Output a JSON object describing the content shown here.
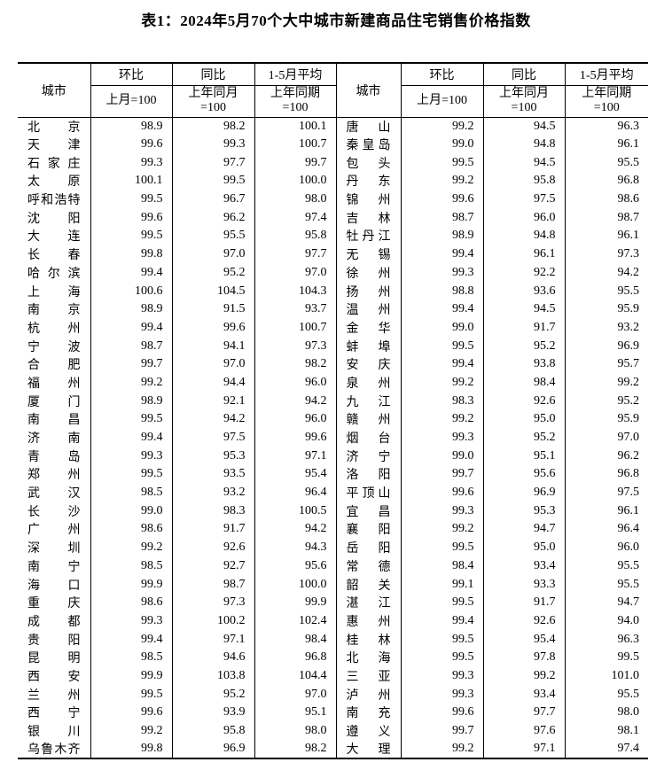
{
  "title": "表1：2024年5月70个大中城市新建商品住宅销售价格指数",
  "table": {
    "city_header": "城市",
    "col_groups": [
      {
        "label": "环比",
        "sub": [
          "上月=100"
        ]
      },
      {
        "label": "同比",
        "sub": [
          "上年同月",
          "=100"
        ]
      },
      {
        "label": "1-5月平均",
        "sub": [
          "上年同期",
          "=100"
        ]
      }
    ],
    "left_rows": [
      {
        "city": "北京",
        "mom": "98.9",
        "yoy": "98.2",
        "avg": "100.1"
      },
      {
        "city": "天津",
        "mom": "99.6",
        "yoy": "99.3",
        "avg": "100.7"
      },
      {
        "city": "石家庄",
        "mom": "99.3",
        "yoy": "97.7",
        "avg": "99.7"
      },
      {
        "city": "太原",
        "mom": "100.1",
        "yoy": "99.5",
        "avg": "100.0"
      },
      {
        "city": "呼和浩特",
        "mom": "99.5",
        "yoy": "96.7",
        "avg": "98.0"
      },
      {
        "city": "沈阳",
        "mom": "99.6",
        "yoy": "96.2",
        "avg": "97.4"
      },
      {
        "city": "大连",
        "mom": "99.5",
        "yoy": "95.5",
        "avg": "95.8"
      },
      {
        "city": "长春",
        "mom": "99.8",
        "yoy": "97.0",
        "avg": "97.7"
      },
      {
        "city": "哈尔滨",
        "mom": "99.4",
        "yoy": "95.2",
        "avg": "97.0"
      },
      {
        "city": "上海",
        "mom": "100.6",
        "yoy": "104.5",
        "avg": "104.3"
      },
      {
        "city": "南京",
        "mom": "98.9",
        "yoy": "91.5",
        "avg": "93.7"
      },
      {
        "city": "杭州",
        "mom": "99.4",
        "yoy": "99.6",
        "avg": "100.7"
      },
      {
        "city": "宁波",
        "mom": "98.7",
        "yoy": "94.1",
        "avg": "97.3"
      },
      {
        "city": "合肥",
        "mom": "99.7",
        "yoy": "97.0",
        "avg": "98.2"
      },
      {
        "city": "福州",
        "mom": "99.2",
        "yoy": "94.4",
        "avg": "96.0"
      },
      {
        "city": "厦门",
        "mom": "98.9",
        "yoy": "92.1",
        "avg": "94.2"
      },
      {
        "city": "南昌",
        "mom": "99.5",
        "yoy": "94.2",
        "avg": "96.0"
      },
      {
        "city": "济南",
        "mom": "99.4",
        "yoy": "97.5",
        "avg": "99.6"
      },
      {
        "city": "青岛",
        "mom": "99.3",
        "yoy": "95.3",
        "avg": "97.1"
      },
      {
        "city": "郑州",
        "mom": "99.5",
        "yoy": "93.5",
        "avg": "95.4"
      },
      {
        "city": "武汉",
        "mom": "98.5",
        "yoy": "93.2",
        "avg": "96.4"
      },
      {
        "city": "长沙",
        "mom": "99.0",
        "yoy": "98.3",
        "avg": "100.5"
      },
      {
        "city": "广州",
        "mom": "98.6",
        "yoy": "91.7",
        "avg": "94.2"
      },
      {
        "city": "深圳",
        "mom": "99.2",
        "yoy": "92.6",
        "avg": "94.3"
      },
      {
        "city": "南宁",
        "mom": "98.5",
        "yoy": "92.7",
        "avg": "95.6"
      },
      {
        "city": "海口",
        "mom": "99.9",
        "yoy": "98.7",
        "avg": "100.0"
      },
      {
        "city": "重庆",
        "mom": "98.6",
        "yoy": "97.3",
        "avg": "99.9"
      },
      {
        "city": "成都",
        "mom": "99.3",
        "yoy": "100.2",
        "avg": "102.4"
      },
      {
        "city": "贵阳",
        "mom": "99.4",
        "yoy": "97.1",
        "avg": "98.4"
      },
      {
        "city": "昆明",
        "mom": "98.5",
        "yoy": "94.6",
        "avg": "96.8"
      },
      {
        "city": "西安",
        "mom": "99.9",
        "yoy": "103.8",
        "avg": "104.4"
      },
      {
        "city": "兰州",
        "mom": "99.5",
        "yoy": "95.2",
        "avg": "97.0"
      },
      {
        "city": "西宁",
        "mom": "99.6",
        "yoy": "93.9",
        "avg": "95.1"
      },
      {
        "city": "银川",
        "mom": "99.2",
        "yoy": "95.8",
        "avg": "98.0"
      },
      {
        "city": "乌鲁木齐",
        "mom": "99.8",
        "yoy": "96.9",
        "avg": "98.2"
      }
    ],
    "right_rows": [
      {
        "city": "唐山",
        "mom": "99.2",
        "yoy": "94.5",
        "avg": "96.3"
      },
      {
        "city": "秦皇岛",
        "mom": "99.0",
        "yoy": "94.8",
        "avg": "96.1"
      },
      {
        "city": "包头",
        "mom": "99.5",
        "yoy": "94.5",
        "avg": "95.5"
      },
      {
        "city": "丹东",
        "mom": "99.2",
        "yoy": "95.8",
        "avg": "96.8"
      },
      {
        "city": "锦州",
        "mom": "99.6",
        "yoy": "97.5",
        "avg": "98.6"
      },
      {
        "city": "吉林",
        "mom": "98.7",
        "yoy": "96.0",
        "avg": "98.7"
      },
      {
        "city": "牡丹江",
        "mom": "98.9",
        "yoy": "94.8",
        "avg": "96.1"
      },
      {
        "city": "无锡",
        "mom": "99.4",
        "yoy": "96.1",
        "avg": "97.3"
      },
      {
        "city": "徐州",
        "mom": "99.3",
        "yoy": "92.2",
        "avg": "94.2"
      },
      {
        "city": "扬州",
        "mom": "98.8",
        "yoy": "93.6",
        "avg": "95.5"
      },
      {
        "city": "温州",
        "mom": "99.4",
        "yoy": "94.5",
        "avg": "95.9"
      },
      {
        "city": "金华",
        "mom": "99.0",
        "yoy": "91.7",
        "avg": "93.2"
      },
      {
        "city": "蚌埠",
        "mom": "99.5",
        "yoy": "95.2",
        "avg": "96.9"
      },
      {
        "city": "安庆",
        "mom": "99.4",
        "yoy": "93.8",
        "avg": "95.7"
      },
      {
        "city": "泉州",
        "mom": "99.2",
        "yoy": "98.4",
        "avg": "99.2"
      },
      {
        "city": "九江",
        "mom": "98.3",
        "yoy": "92.6",
        "avg": "95.2"
      },
      {
        "city": "赣州",
        "mom": "99.2",
        "yoy": "95.0",
        "avg": "95.9"
      },
      {
        "city": "烟台",
        "mom": "99.3",
        "yoy": "95.2",
        "avg": "97.0"
      },
      {
        "city": "济宁",
        "mom": "99.0",
        "yoy": "95.1",
        "avg": "96.2"
      },
      {
        "city": "洛阳",
        "mom": "99.7",
        "yoy": "95.6",
        "avg": "96.8"
      },
      {
        "city": "平顶山",
        "mom": "99.6",
        "yoy": "96.9",
        "avg": "97.5"
      },
      {
        "city": "宜昌",
        "mom": "99.3",
        "yoy": "95.3",
        "avg": "96.1"
      },
      {
        "city": "襄阳",
        "mom": "99.2",
        "yoy": "94.7",
        "avg": "96.4"
      },
      {
        "city": "岳阳",
        "mom": "99.5",
        "yoy": "95.0",
        "avg": "96.0"
      },
      {
        "city": "常德",
        "mom": "98.4",
        "yoy": "93.4",
        "avg": "95.5"
      },
      {
        "city": "韶关",
        "mom": "99.1",
        "yoy": "93.3",
        "avg": "95.5"
      },
      {
        "city": "湛江",
        "mom": "99.5",
        "yoy": "91.7",
        "avg": "94.7"
      },
      {
        "city": "惠州",
        "mom": "99.4",
        "yoy": "92.6",
        "avg": "94.0"
      },
      {
        "city": "桂林",
        "mom": "99.5",
        "yoy": "95.4",
        "avg": "96.3"
      },
      {
        "city": "北海",
        "mom": "99.5",
        "yoy": "97.8",
        "avg": "99.5"
      },
      {
        "city": "三亚",
        "mom": "99.3",
        "yoy": "99.2",
        "avg": "101.0"
      },
      {
        "city": "泸州",
        "mom": "99.3",
        "yoy": "93.4",
        "avg": "95.5"
      },
      {
        "city": "南充",
        "mom": "99.6",
        "yoy": "97.7",
        "avg": "98.0"
      },
      {
        "city": "遵义",
        "mom": "99.7",
        "yoy": "97.6",
        "avg": "98.1"
      },
      {
        "city": "大理",
        "mom": "99.2",
        "yoy": "97.1",
        "avg": "97.4"
      }
    ]
  }
}
